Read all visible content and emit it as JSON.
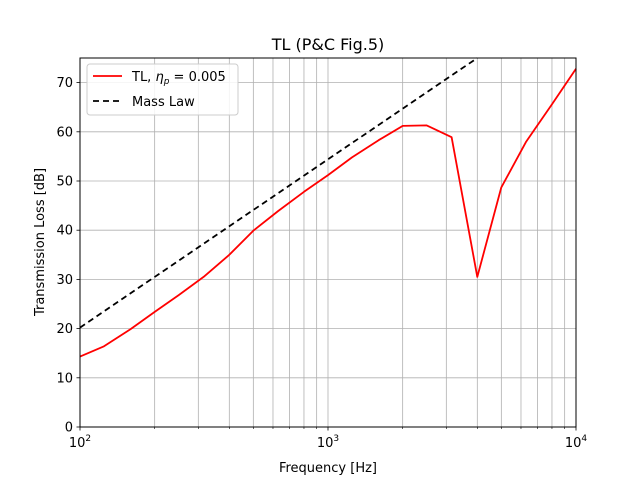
{
  "chart_data": {
    "type": "line",
    "title": "TL (P&C Fig.5)",
    "xlabel": "Frequency [Hz]",
    "ylabel": "Transmission Loss [dB]",
    "xscale": "log",
    "xlim": [
      100,
      10000
    ],
    "ylim": [
      0,
      75
    ],
    "grid": true,
    "legend_position": "upper-left",
    "x_ticks": [
      {
        "value": 100,
        "base": "10",
        "exp": "2"
      },
      {
        "value": 1000,
        "base": "10",
        "exp": "3"
      },
      {
        "value": 10000,
        "base": "10",
        "exp": "4"
      }
    ],
    "y_ticks": [
      0,
      10,
      20,
      30,
      40,
      50,
      60,
      70
    ],
    "series": [
      {
        "name": "TL, η_p = 0.005",
        "legend_prefix": "TL, ",
        "legend_symbol": "η",
        "legend_subscript": "p",
        "legend_suffix": " = 0.005",
        "color": "#ff0000",
        "style": "solid",
        "x": [
          100,
          125,
          160,
          200,
          250,
          315,
          400,
          500,
          630,
          800,
          1000,
          1250,
          1600,
          2000,
          2500,
          3150,
          4000,
          5000,
          6300,
          8000,
          10000
        ],
        "y": [
          14.3,
          16.4,
          19.9,
          23.4,
          26.8,
          30.5,
          35.0,
          39.9,
          43.9,
          47.8,
          51.2,
          54.8,
          58.3,
          61.2,
          61.3,
          58.9,
          30.5,
          48.7,
          58.0,
          65.6,
          72.8
        ]
      },
      {
        "name": "Mass Law",
        "color": "#000000",
        "style": "dashed",
        "x": [
          100,
          4000
        ],
        "y": [
          20.2,
          75.0
        ]
      }
    ]
  }
}
